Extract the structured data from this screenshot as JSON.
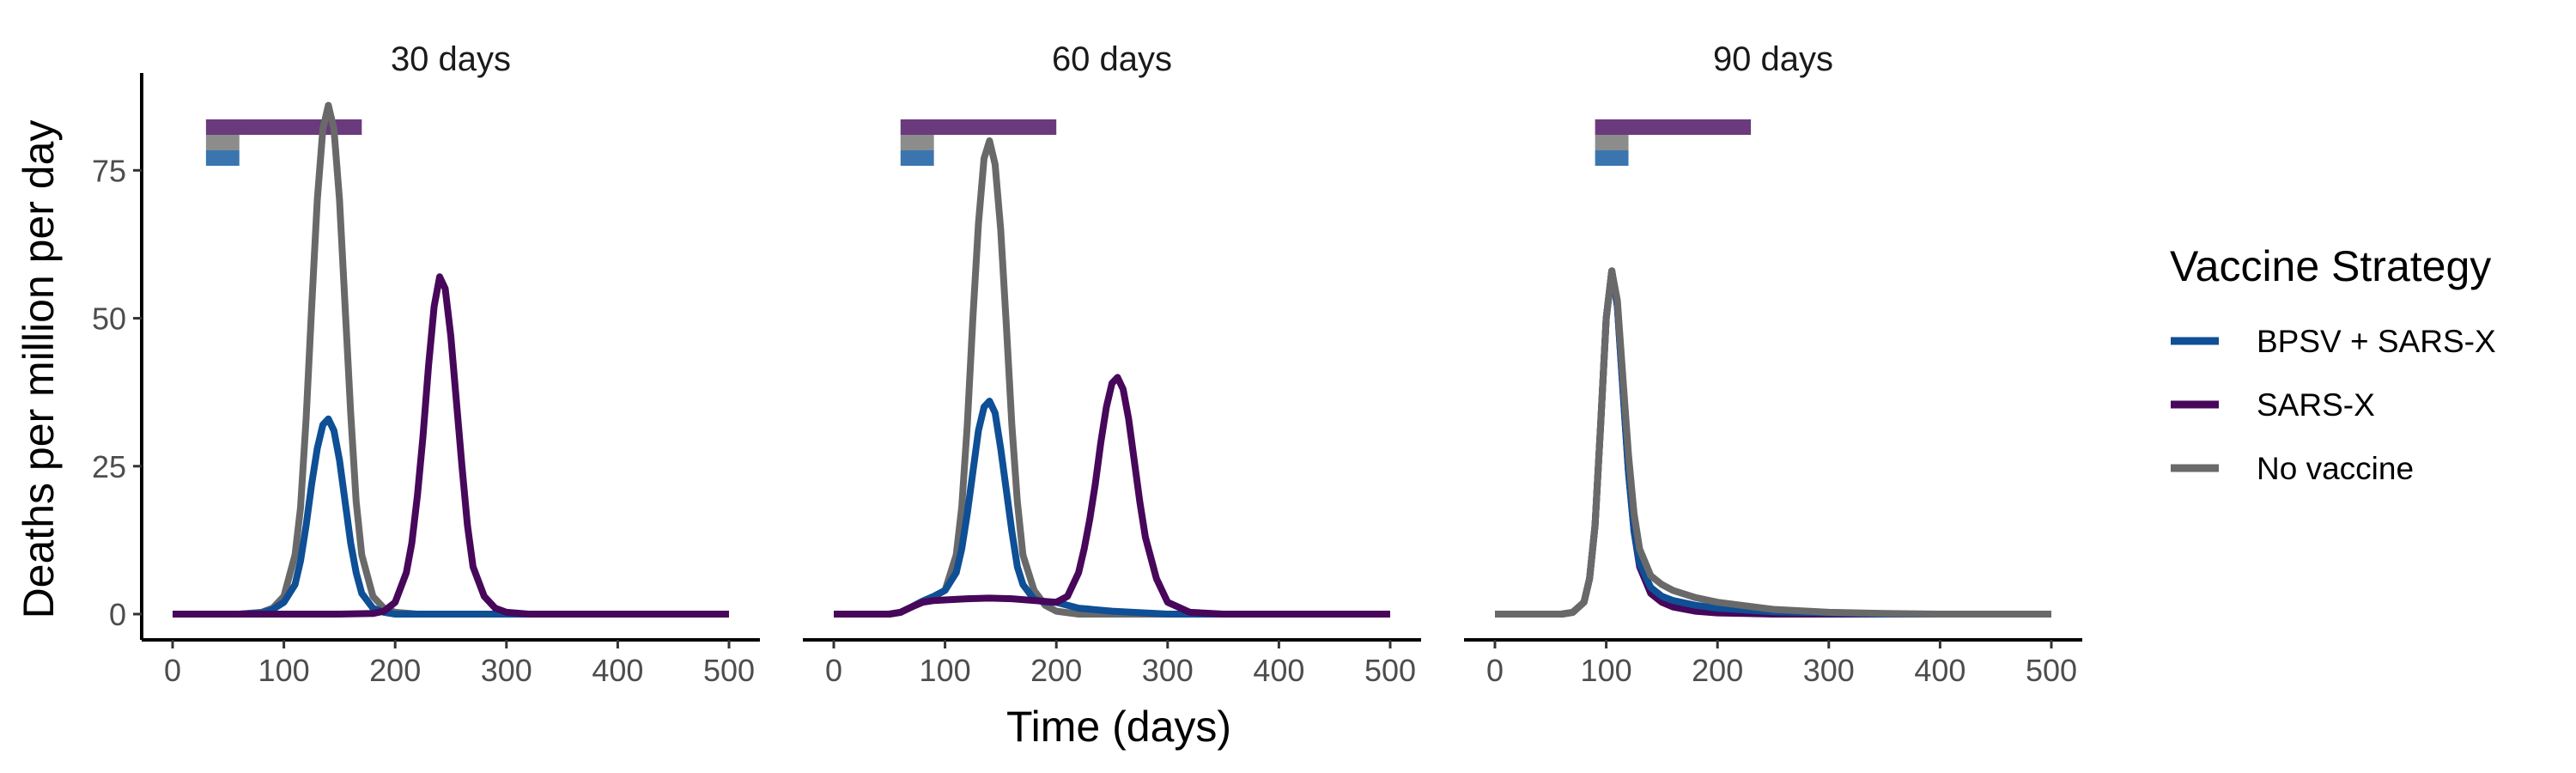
{
  "chart_data": {
    "type": "line",
    "xlabel": "Time (days)",
    "ylabel": "Deaths per million per day",
    "xlim": [
      0,
      500
    ],
    "ylim": [
      0,
      90
    ],
    "x_ticks": [
      0,
      100,
      200,
      300,
      400,
      500
    ],
    "y_ticks": [
      0,
      25,
      50,
      75
    ],
    "grid": false,
    "legend": {
      "title": "Vaccine Strategy",
      "position": "right",
      "entries": [
        {
          "key": "bpsv",
          "label": "BPSV + SARS-X",
          "color": "#0E4F96"
        },
        {
          "key": "sarsx",
          "label": "SARS-X",
          "color": "#47075A"
        },
        {
          "key": "novax",
          "label": "No vaccine",
          "color": "#696969"
        }
      ]
    },
    "bar_colors": {
      "bpsv": "#3B75B0",
      "sarsx": "#6B3A7D",
      "novax": "#8C8C8C"
    },
    "panels": [
      {
        "title": "30 days",
        "bars": {
          "bpsv": [
            30,
            60
          ],
          "sarsx": [
            30,
            170
          ],
          "novax": [
            30,
            60
          ]
        },
        "series": [
          {
            "key": "novax",
            "x": [
              0,
              60,
              80,
              90,
              100,
              110,
              115,
              120,
              125,
              130,
              135,
              140,
              145,
              150,
              155,
              160,
              165,
              170,
              180,
              190,
              200,
              220,
              250,
              300,
              350,
              400,
              450,
              500
            ],
            "y": [
              0,
              0,
              0.3,
              1,
              3,
              10,
              18,
              33,
              52,
              70,
              82,
              86,
              82,
              70,
              52,
              34,
              19,
              10,
              3,
              1,
              0.3,
              0,
              0,
              0,
              0,
              0,
              0,
              0
            ]
          },
          {
            "key": "bpsv",
            "x": [
              0,
              60,
              80,
              90,
              100,
              110,
              115,
              120,
              125,
              130,
              135,
              140,
              145,
              150,
              155,
              160,
              165,
              170,
              180,
              190,
              200,
              220,
              250,
              300,
              350,
              400,
              450,
              500
            ],
            "y": [
              0,
              0,
              0.2,
              0.8,
              2,
              5,
              9,
              15,
              22,
              28,
              32,
              33,
              31,
              26,
              19,
              12,
              7,
              3.5,
              1,
              0.3,
              0,
              0,
              0,
              0,
              0,
              0,
              0,
              0
            ]
          },
          {
            "key": "sarsx",
            "x": [
              0,
              60,
              100,
              150,
              180,
              190,
              200,
              210,
              215,
              220,
              225,
              230,
              235,
              240,
              245,
              250,
              255,
              260,
              265,
              270,
              280,
              290,
              300,
              320,
              350,
              400,
              450,
              500
            ],
            "y": [
              0,
              0,
              0,
              0,
              0.1,
              0.5,
              2,
              7,
              12,
              20,
              30,
              42,
              52,
              57,
              55,
              47,
              36,
              25,
              15,
              8,
              3,
              1,
              0.3,
              0,
              0,
              0,
              0,
              0
            ]
          }
        ]
      },
      {
        "title": "60 days",
        "bars": {
          "bpsv": [
            60,
            90
          ],
          "sarsx": [
            60,
            200
          ],
          "novax": [
            60,
            90
          ]
        },
        "series": [
          {
            "key": "novax",
            "x": [
              0,
              50,
              60,
              70,
              80,
              90,
              100,
              110,
              115,
              120,
              125,
              130,
              135,
              140,
              145,
              150,
              155,
              160,
              165,
              170,
              180,
              190,
              200,
              220,
              250,
              300,
              350,
              400,
              450,
              500
            ],
            "y": [
              0,
              0,
              0.3,
              1.2,
              2.2,
              3,
              4,
              10,
              18,
              32,
              50,
              66,
              77,
              80,
              76,
              65,
              49,
              32,
              19,
              10,
              4,
              1.5,
              0.5,
              0,
              0,
              0,
              0,
              0,
              0,
              0
            ]
          },
          {
            "key": "bpsv",
            "x": [
              0,
              50,
              60,
              70,
              80,
              90,
              100,
              110,
              115,
              120,
              125,
              130,
              135,
              140,
              145,
              150,
              155,
              160,
              165,
              170,
              180,
              190,
              200,
              220,
              250,
              300,
              350,
              400,
              450,
              500
            ],
            "y": [
              0,
              0,
              0.3,
              1.2,
              2.2,
              3,
              4,
              7,
              11,
              17,
              24,
              31,
              35,
              36,
              34,
              28,
              21,
              14,
              8,
              5,
              2.5,
              2,
              2,
              1,
              0.5,
              0,
              0,
              0,
              0,
              0
            ]
          },
          {
            "key": "sarsx",
            "x": [
              0,
              50,
              60,
              70,
              80,
              90,
              100,
              120,
              140,
              160,
              180,
              200,
              210,
              220,
              225,
              230,
              235,
              240,
              245,
              250,
              255,
              260,
              265,
              270,
              275,
              280,
              290,
              300,
              320,
              350,
              400,
              450,
              500
            ],
            "y": [
              0,
              0,
              0.3,
              1.2,
              2,
              2.3,
              2.4,
              2.6,
              2.7,
              2.6,
              2.3,
              2,
              3,
              7,
              11,
              16,
              22,
              29,
              35,
              39,
              40,
              38,
              33,
              26,
              19,
              13,
              6,
              2,
              0.3,
              0,
              0,
              0,
              0
            ]
          }
        ]
      },
      {
        "title": "90 days",
        "bars": {
          "bpsv": [
            90,
            120
          ],
          "sarsx": [
            90,
            230
          ],
          "novax": [
            90,
            120
          ]
        },
        "series": [
          {
            "key": "sarsx",
            "x": [
              0,
              60,
              70,
              80,
              85,
              90,
              95,
              100,
              105,
              110,
              115,
              120,
              125,
              130,
              140,
              150,
              160,
              180,
              200,
              250,
              300,
              350,
              400,
              450,
              500
            ],
            "y": [
              0,
              0,
              0.3,
              2,
              6,
              15,
              32,
              50,
              58,
              52,
              38,
              24,
              14,
              8,
              3.5,
              2,
              1.2,
              0.5,
              0.2,
              0,
              0,
              0,
              0,
              0,
              0
            ]
          },
          {
            "key": "bpsv",
            "x": [
              0,
              60,
              70,
              80,
              85,
              90,
              95,
              100,
              105,
              110,
              115,
              120,
              125,
              130,
              140,
              150,
              160,
              180,
              200,
              250,
              300,
              350,
              400,
              450,
              500
            ],
            "y": [
              0,
              0,
              0.3,
              2,
              6,
              15,
              32,
              50,
              58,
              52,
              38,
              24,
              14,
              8.5,
              4.5,
              3,
              2.3,
              1.5,
              1,
              0.4,
              0.2,
              0,
              0,
              0,
              0
            ]
          },
          {
            "key": "novax",
            "x": [
              0,
              60,
              70,
              80,
              85,
              90,
              95,
              100,
              105,
              110,
              115,
              120,
              125,
              130,
              140,
              150,
              160,
              180,
              200,
              250,
              300,
              350,
              400,
              450,
              500
            ],
            "y": [
              0,
              0,
              0.3,
              2,
              6,
              15,
              32,
              50,
              58,
              53,
              40,
              27,
              17,
              11,
              6.5,
              5,
              4,
              2.8,
              2,
              0.8,
              0.3,
              0.1,
              0,
              0,
              0
            ]
          }
        ]
      }
    ]
  }
}
